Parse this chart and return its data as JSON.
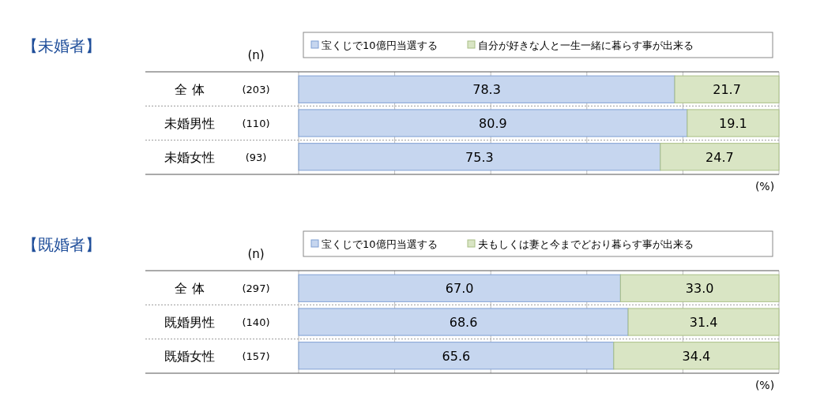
{
  "chart_data": [
    {
      "type": "bar",
      "orientation": "horizontal",
      "stacked": true,
      "title": "【未婚者】",
      "xlabel": "(%)",
      "categories": [
        "全 体",
        "未婚男性",
        "未婚女性"
      ],
      "series": [
        {
          "name": "宝くじで10億円当選する",
          "color": "#c6d6ef",
          "values": [
            78.3,
            80.9,
            75.3
          ]
        },
        {
          "name": "自分が好きな人と一生一緒に暮らす事が出来る",
          "color": "#d9e5c4",
          "values": [
            21.7,
            19.1,
            24.7
          ]
        }
      ],
      "xlim": [
        0,
        100
      ],
      "xticks": [
        {
          "value": 0,
          "label": null
        },
        {
          "value": 20,
          "label": null
        },
        {
          "value": 40,
          "label": null
        },
        {
          "value": 60,
          "label": null
        },
        {
          "value": 80,
          "label": null
        },
        {
          "value": 100,
          "label": null
        }
      ],
      "grid": "x",
      "legend": "top",
      "tick_labels": "y",
      "data_labels": true,
      "annotations": [
        "(n)",
        "(203)",
        "(110)",
        "(93)"
      ]
    },
    {
      "type": "bar",
      "orientation": "horizontal",
      "stacked": true,
      "title": "【既婚者】",
      "xlabel": "(%)",
      "categories": [
        "全 体",
        "既婚男性",
        "既婚女性"
      ],
      "series": [
        {
          "name": "宝くじで10億円当選する",
          "color": "#c6d6ef",
          "values": [
            67.0,
            68.6,
            65.6
          ],
          "value_labels": [
            "67.0",
            "68.6",
            "65.6"
          ]
        },
        {
          "name": "夫もしくは妻と今までどおり暮らす事が出来る",
          "color": "#d9e5c4",
          "values": [
            33.0,
            31.4,
            34.4
          ],
          "value_labels": [
            "33.0",
            "31.4",
            "34.4"
          ]
        }
      ],
      "xlim": [
        0,
        100
      ],
      "xticks": [
        {
          "value": 0,
          "label": null
        },
        {
          "value": 20,
          "label": null
        },
        {
          "value": 40,
          "label": null
        },
        {
          "value": 60,
          "label": null
        },
        {
          "value": 80,
          "label": null
        },
        {
          "value": 100,
          "label": null
        }
      ],
      "grid": "x",
      "legend": "top",
      "tick_labels": "y",
      "annotations": [
        "(n)",
        "(297)",
        "(140)",
        "(157)"
      ]
    }
  ]
}
